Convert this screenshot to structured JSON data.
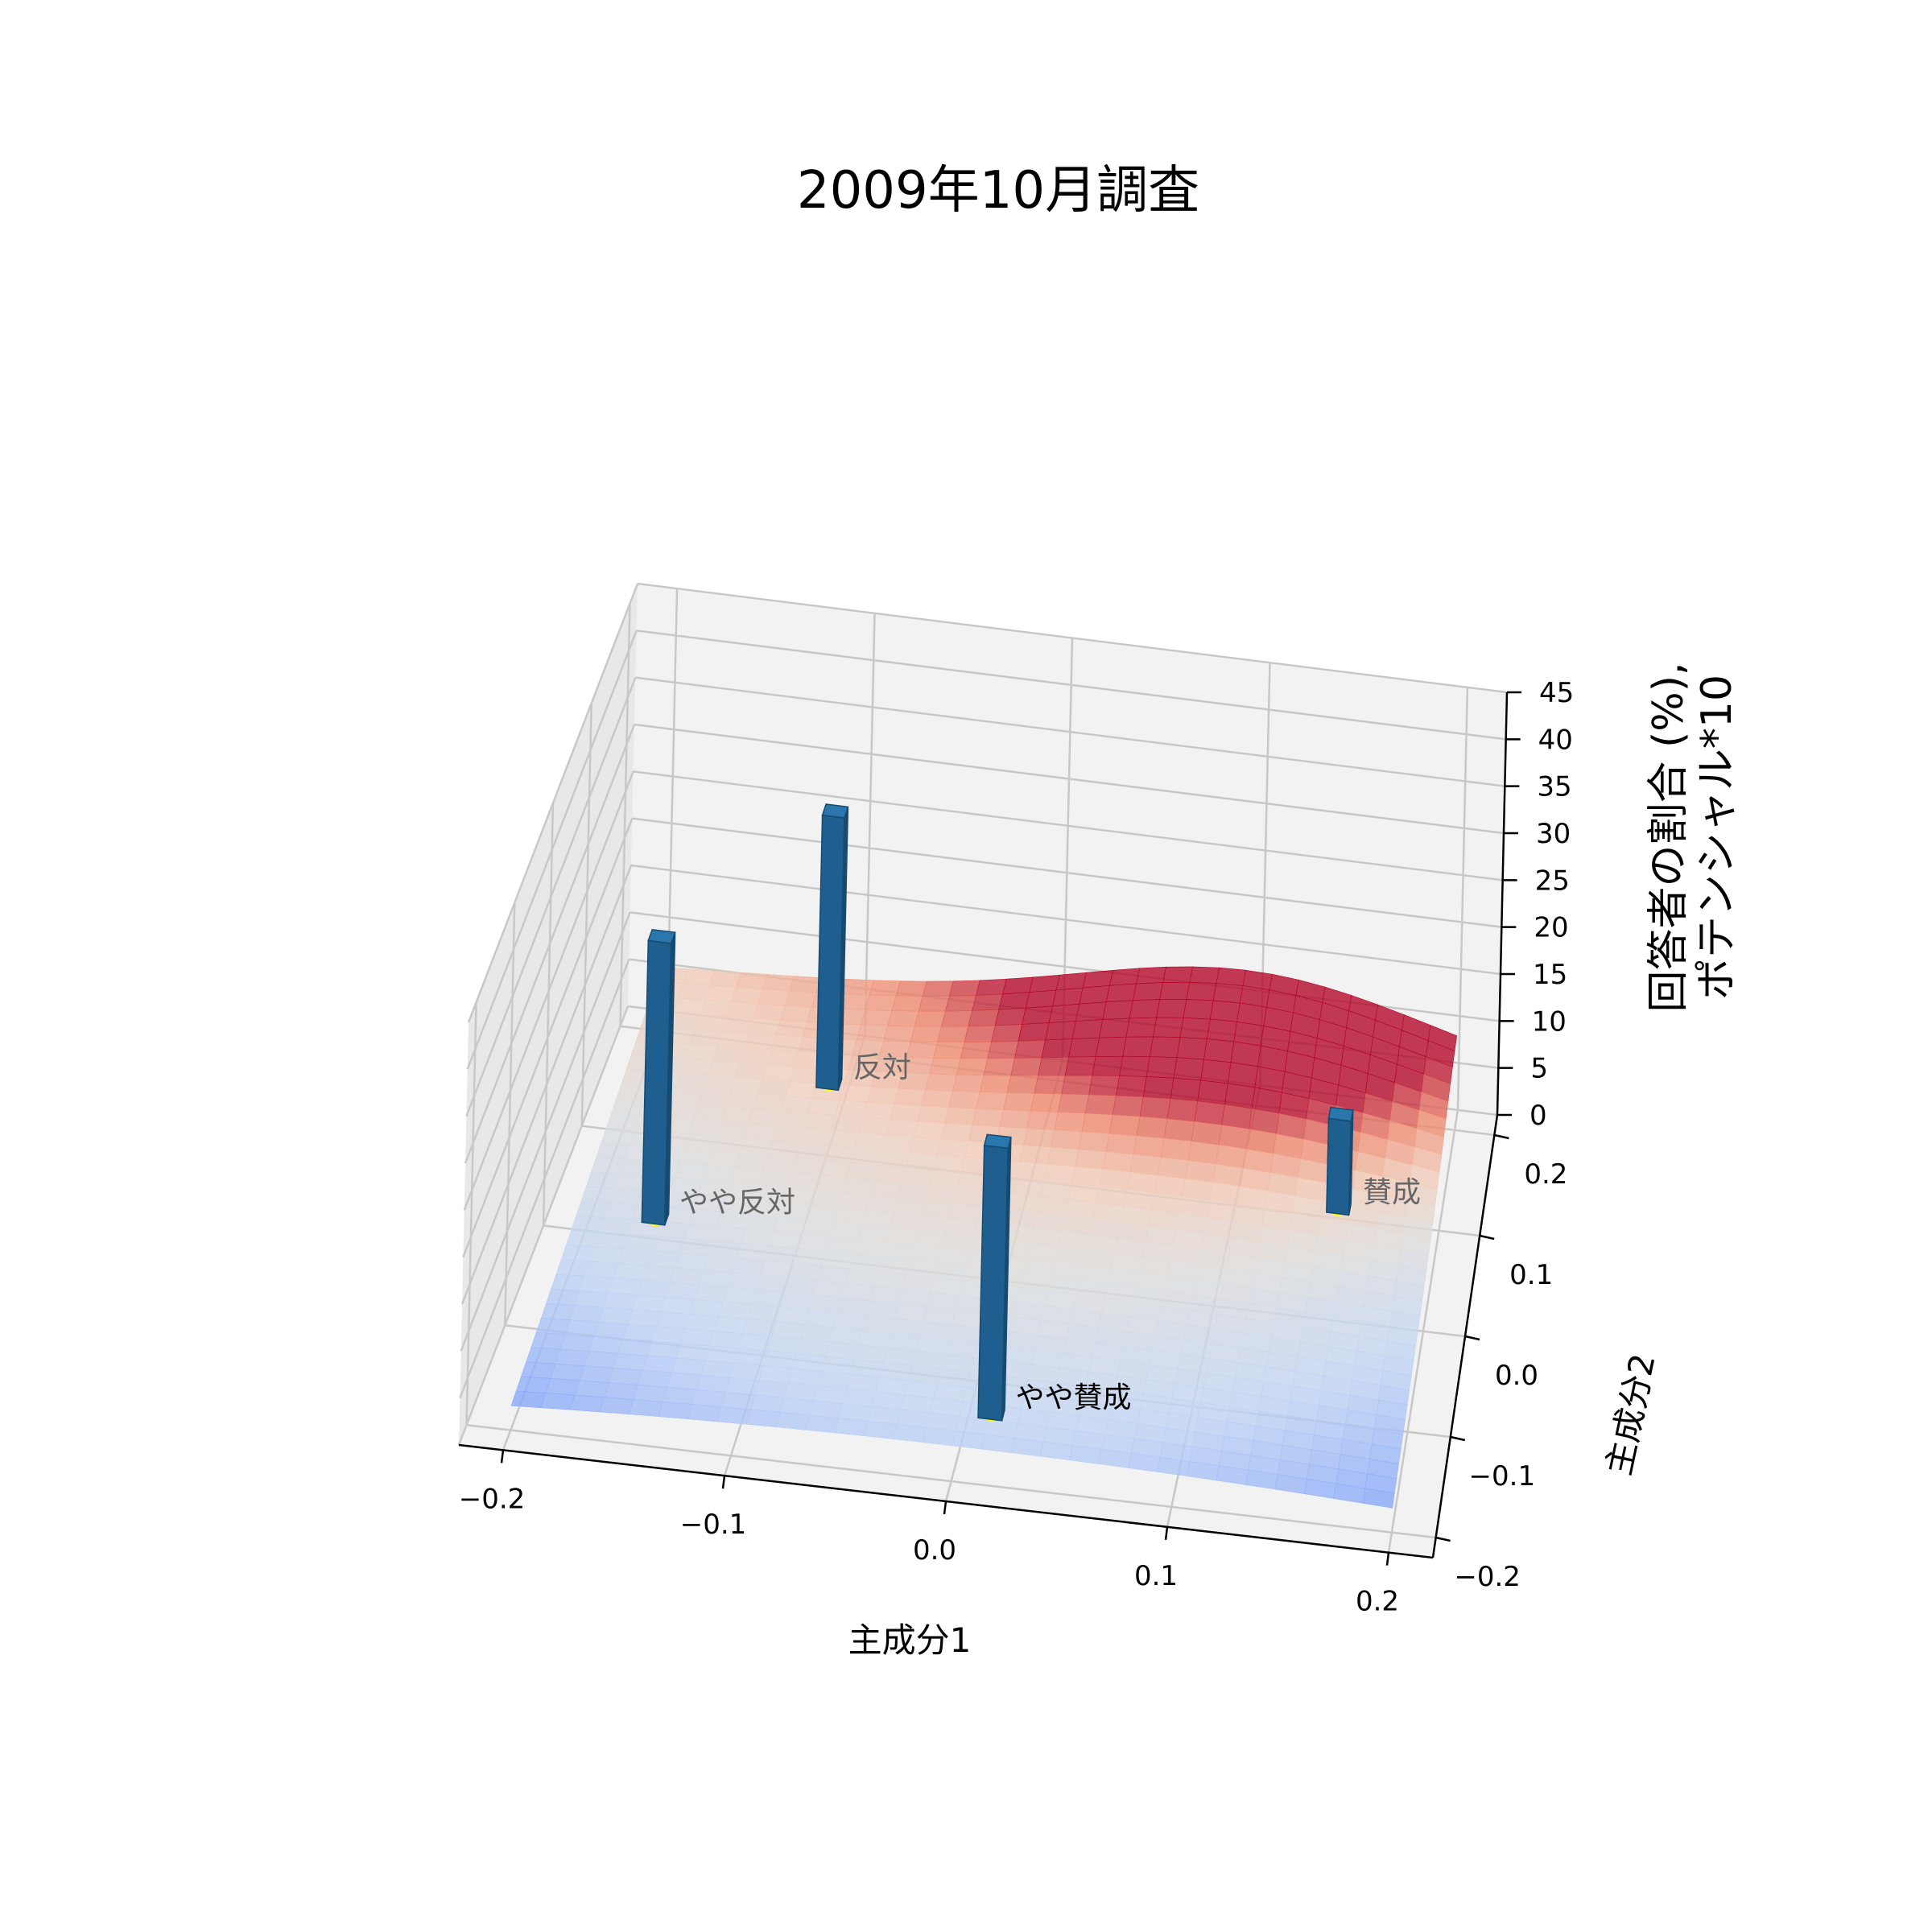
{
  "chart_data": {
    "type": "3d-surface-bar",
    "title": "2009年10月調査",
    "xlabel": "主成分1",
    "ylabel": "主成分2",
    "zlabel_line1": "回答者の割合 (%),",
    "zlabel_line2": "ポテンシャル*10",
    "x_ticks": [
      "−0.2",
      "−0.1",
      "0.0",
      "0.1",
      "0.2"
    ],
    "y_ticks": [
      "−0.2",
      "−0.1",
      "0.0",
      "0.1",
      "0.2"
    ],
    "z_ticks": [
      "0",
      "5",
      "10",
      "15",
      "20",
      "25",
      "30",
      "35",
      "40",
      "45"
    ],
    "xlim": [
      -0.22,
      0.22
    ],
    "ylim": [
      -0.22,
      0.22
    ],
    "zlim": [
      0,
      45
    ],
    "grid": true,
    "surface_colormap": "coolwarm",
    "bar_color": "#1f5f8f",
    "marker_color": "#ffff00",
    "points": [
      {
        "label": "やや反対",
        "x": -0.17,
        "y": 0.02,
        "value": 30
      },
      {
        "label": "反対",
        "x": -0.11,
        "y": 0.17,
        "value": 29
      },
      {
        "label": "やや賛成",
        "x": 0.01,
        "y": -0.13,
        "value": 29
      },
      {
        "label": "賛成",
        "x": 0.15,
        "y": 0.11,
        "value": 10
      }
    ]
  }
}
